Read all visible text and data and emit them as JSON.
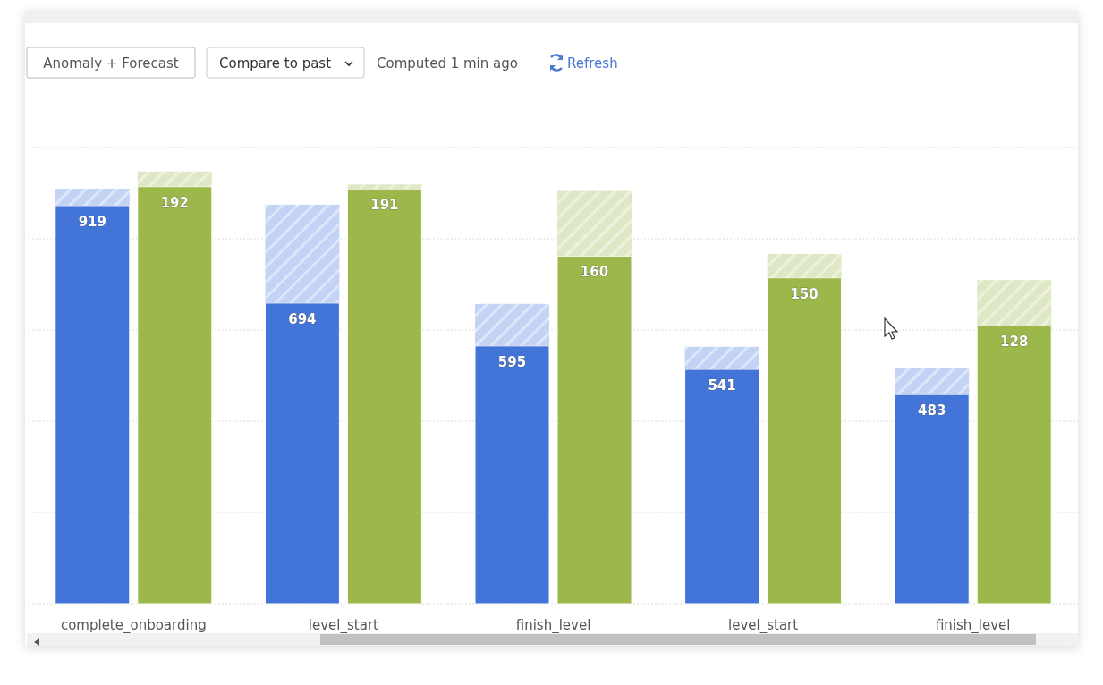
{
  "chart_data": {
    "type": "bar",
    "stacked": true,
    "grid": "y",
    "tick_labels": false,
    "ylim": [
      0,
      1053
    ],
    "y2lim": [
      0,
      210
    ],
    "categories": [
      "complete_onboarding",
      "level_start",
      "finish_level",
      "level_start",
      "finish_level"
    ],
    "series": [
      {
        "color": "#4374d8",
        "values": [
          919,
          694,
          595,
          541,
          483
        ],
        "value_labels": [
          "919",
          "694",
          "595",
          "541",
          "483"
        ]
      },
      {
        "color": "#9cb84a",
        "axis": "y2",
        "values": [
          192,
          191,
          160,
          150,
          128
        ],
        "value_labels": [
          "192",
          "191",
          "160",
          "150",
          "128"
        ]
      },
      {
        "color": "#c3d3f4",
        "values": [
          39,
          227,
          97,
          52,
          60
        ]
      },
      {
        "color": "#dfe8c4",
        "axis": "y2",
        "values": [
          7,
          2,
          30,
          11,
          21
        ]
      }
    ],
    "annotations": [
      "Anomaly + Forecast",
      "Compare to past",
      "Computed 1 min ago",
      "Refresh"
    ]
  }
}
